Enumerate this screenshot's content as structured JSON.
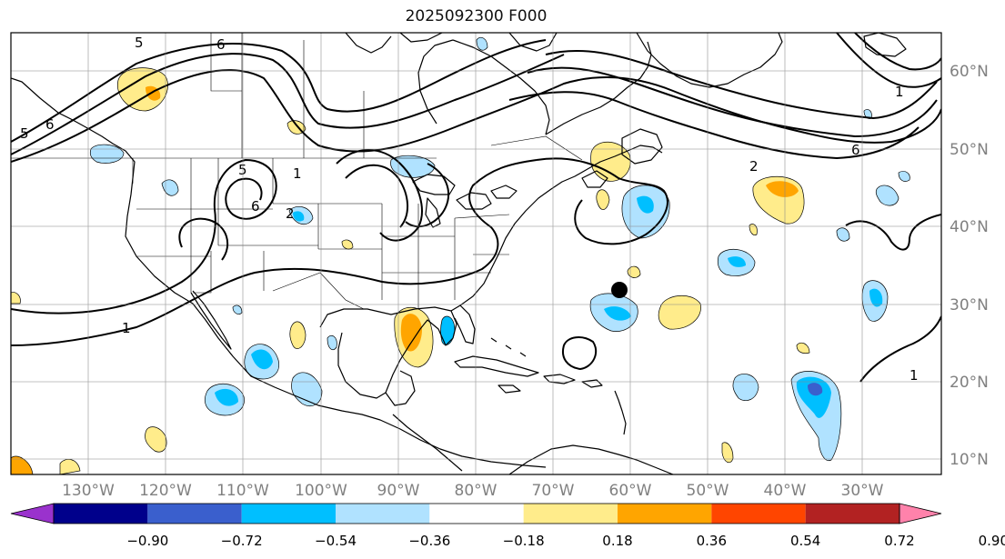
{
  "title": "2025092300 F000",
  "lat_labels": [
    "60°N",
    "50°N",
    "40°N",
    "30°N",
    "20°N",
    "10°N"
  ],
  "lon_labels": [
    "130°W",
    "120°W",
    "110°W",
    "100°W",
    "90°W",
    "80°W",
    "70°W",
    "60°W",
    "50°W",
    "40°W",
    "30°W"
  ],
  "contour_labels": [
    "5",
    "6",
    "5",
    "6",
    "1",
    "5",
    "6",
    "2",
    "6",
    "1",
    "2",
    "1",
    "1"
  ],
  "colorbar": {
    "ticks": [
      "−0.90",
      "−0.72",
      "−0.54",
      "−0.36",
      "−0.18",
      "0.18",
      "0.36",
      "0.54",
      "0.72",
      "0.90"
    ],
    "colors": [
      "#9a32cd",
      "#00008b",
      "#3a5fcd",
      "#00bfff",
      "#b0e2ff",
      "#ffffff",
      "#ffec8b",
      "#ffa500",
      "#ff4500",
      "#b22222",
      "#ff82ab"
    ]
  }
}
